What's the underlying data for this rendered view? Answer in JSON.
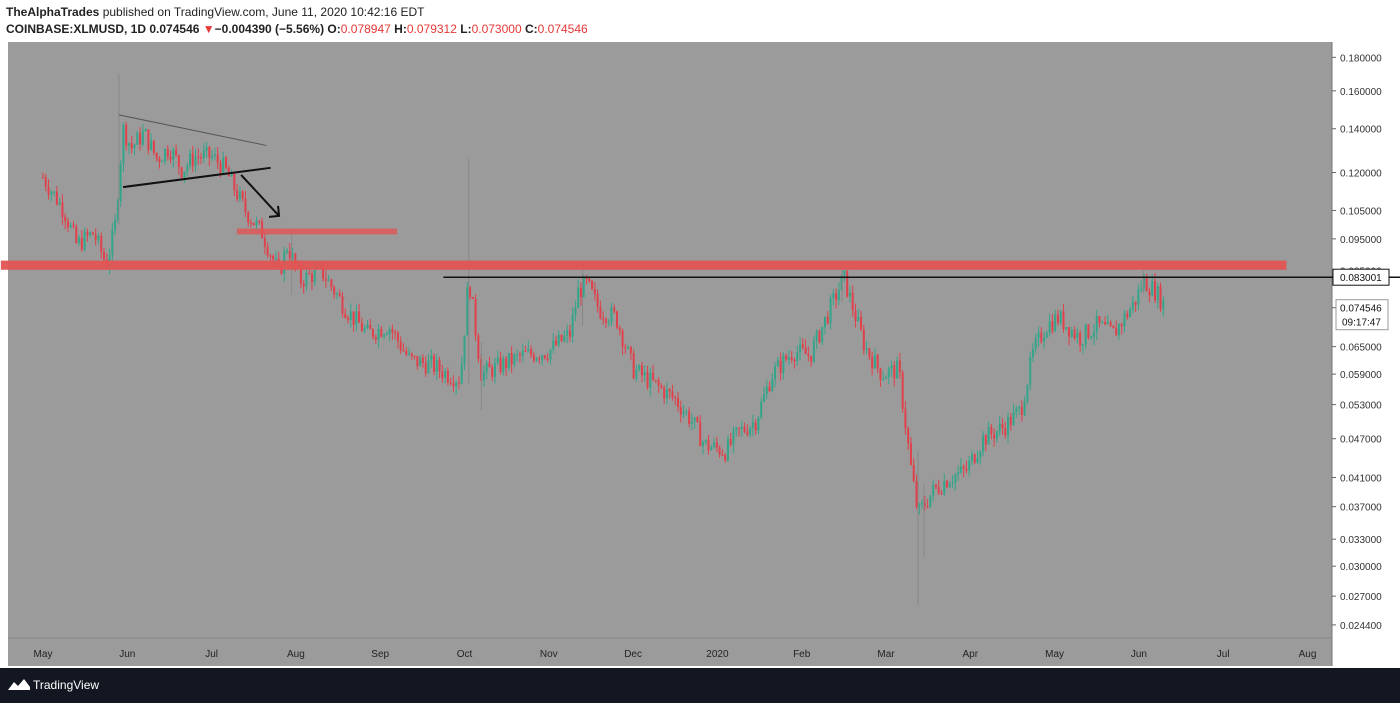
{
  "header": {
    "publisher": "TheAlphaTrades",
    "published_text": " published on TradingView.com, June 11, 2020 10:42:16 EDT",
    "symbol": "COINBASE:XLMUSD, 1D",
    "last": "0.074546",
    "change": "−0.004390 (−5.56%)",
    "o_label": "O:",
    "o_value": "0.078947",
    "h_label": "H:",
    "h_value": "0.079312",
    "l_label": "L:",
    "l_value": "0.073000",
    "c_label": "C:",
    "c_value": "0.074546"
  },
  "footer": {
    "brand": "TradingView",
    "logo_icon": "tradingview-logo-icon"
  },
  "colors": {
    "background": "#9b9b9b",
    "up": "#33a58a",
    "down": "#e0414b",
    "zone": "#e25454",
    "footer": "#131722"
  },
  "chart_data": {
    "type": "candlestick",
    "x_ticks": [
      "May",
      "Jun",
      "Jul",
      "Aug",
      "Sep",
      "Oct",
      "Nov",
      "Dec",
      "2020",
      "Feb",
      "Mar",
      "Apr",
      "May",
      "Jun",
      "Jul",
      "Aug"
    ],
    "y_ticks": [
      "0.180000",
      "0.160000",
      "0.140000",
      "0.120000",
      "0.105000",
      "0.095000",
      "0.085000",
      "0.074546",
      "0.065000",
      "0.059000",
      "0.053000",
      "0.047000",
      "0.041000",
      "0.037000",
      "0.033000",
      "0.030000",
      "0.027000",
      "0.024400"
    ],
    "ylim": [
      0.0233,
      0.19
    ],
    "scale": "log",
    "price_labels": {
      "horizontal_level": "0.083001",
      "last_price": "0.074546",
      "countdown": "09:17:47"
    },
    "price_path": [
      {
        "month": 0.0,
        "price": 0.118
      },
      {
        "month": 0.25,
        "price": 0.105
      },
      {
        "month": 0.4,
        "price": 0.093
      },
      {
        "month": 0.6,
        "price": 0.097
      },
      {
        "month": 0.75,
        "price": 0.087
      },
      {
        "month": 0.85,
        "price": 0.098
      },
      {
        "month": 0.95,
        "price": 0.14
      },
      {
        "month": 1.05,
        "price": 0.131
      },
      {
        "month": 1.2,
        "price": 0.138
      },
      {
        "month": 1.35,
        "price": 0.126
      },
      {
        "month": 1.5,
        "price": 0.131
      },
      {
        "month": 1.65,
        "price": 0.121
      },
      {
        "month": 1.8,
        "price": 0.127
      },
      {
        "month": 2.0,
        "price": 0.127
      },
      {
        "month": 2.15,
        "price": 0.122
      },
      {
        "month": 2.4,
        "price": 0.105
      },
      {
        "month": 2.6,
        "price": 0.097
      },
      {
        "month": 2.8,
        "price": 0.084
      },
      {
        "month": 2.9,
        "price": 0.093
      },
      {
        "month": 3.05,
        "price": 0.082
      },
      {
        "month": 3.3,
        "price": 0.085
      },
      {
        "month": 3.6,
        "price": 0.074
      },
      {
        "month": 3.85,
        "price": 0.068
      },
      {
        "month": 4.1,
        "price": 0.07
      },
      {
        "month": 4.35,
        "price": 0.062
      },
      {
        "month": 4.6,
        "price": 0.061
      },
      {
        "month": 4.8,
        "price": 0.059
      },
      {
        "month": 4.95,
        "price": 0.058
      },
      {
        "month": 5.05,
        "price": 0.083
      },
      {
        "month": 5.2,
        "price": 0.059
      },
      {
        "month": 5.45,
        "price": 0.061
      },
      {
        "month": 5.7,
        "price": 0.063
      },
      {
        "month": 6.0,
        "price": 0.064
      },
      {
        "month": 6.25,
        "price": 0.068
      },
      {
        "month": 6.35,
        "price": 0.079
      },
      {
        "month": 6.45,
        "price": 0.081
      },
      {
        "month": 6.6,
        "price": 0.074
      },
      {
        "month": 6.8,
        "price": 0.072
      },
      {
        "month": 7.0,
        "price": 0.06
      },
      {
        "month": 7.25,
        "price": 0.057
      },
      {
        "month": 7.5,
        "price": 0.054
      },
      {
        "month": 7.7,
        "price": 0.05
      },
      {
        "month": 7.85,
        "price": 0.046
      },
      {
        "month": 8.1,
        "price": 0.045
      },
      {
        "month": 8.25,
        "price": 0.048
      },
      {
        "month": 8.45,
        "price": 0.05
      },
      {
        "month": 8.65,
        "price": 0.059
      },
      {
        "month": 8.9,
        "price": 0.064
      },
      {
        "month": 9.1,
        "price": 0.063
      },
      {
        "month": 9.35,
        "price": 0.075
      },
      {
        "month": 9.5,
        "price": 0.083
      },
      {
        "month": 9.6,
        "price": 0.075
      },
      {
        "month": 9.75,
        "price": 0.065
      },
      {
        "month": 9.95,
        "price": 0.059
      },
      {
        "month": 10.15,
        "price": 0.06
      },
      {
        "month": 10.3,
        "price": 0.042
      },
      {
        "month": 10.38,
        "price": 0.036
      },
      {
        "month": 10.55,
        "price": 0.039
      },
      {
        "month": 10.75,
        "price": 0.041
      },
      {
        "month": 10.95,
        "price": 0.042
      },
      {
        "month": 11.15,
        "price": 0.047
      },
      {
        "month": 11.4,
        "price": 0.049
      },
      {
        "month": 11.6,
        "price": 0.052
      },
      {
        "month": 11.75,
        "price": 0.064
      },
      {
        "month": 11.9,
        "price": 0.07
      },
      {
        "month": 12.05,
        "price": 0.072
      },
      {
        "month": 12.3,
        "price": 0.067
      },
      {
        "month": 12.5,
        "price": 0.07
      },
      {
        "month": 12.7,
        "price": 0.068
      },
      {
        "month": 12.95,
        "price": 0.076
      },
      {
        "month": 13.05,
        "price": 0.082
      },
      {
        "month": 13.2,
        "price": 0.079
      },
      {
        "month": 13.32,
        "price": 0.0745
      }
    ],
    "spikes": [
      {
        "month": 0.9,
        "high": 0.17,
        "low": 0.1
      },
      {
        "month": 2.95,
        "high": 0.098,
        "low": 0.078
      },
      {
        "month": 5.05,
        "high": 0.126,
        "low": 0.057
      },
      {
        "month": 5.2,
        "high": 0.066,
        "low": 0.052
      },
      {
        "month": 6.4,
        "high": 0.087,
        "low": 0.07
      },
      {
        "month": 9.48,
        "high": 0.087,
        "low": 0.076
      },
      {
        "month": 10.38,
        "high": 0.045,
        "low": 0.0262
      },
      {
        "month": 10.45,
        "high": 0.04,
        "low": 0.031
      },
      {
        "month": 13.05,
        "high": 0.085,
        "low": 0.078
      }
    ],
    "drawings": {
      "triangle_upper": [
        {
          "month": 0.9,
          "price": 0.147
        },
        {
          "month": 2.65,
          "price": 0.132
        }
      ],
      "triangle_lower": [
        {
          "month": 0.95,
          "price": 0.114
        },
        {
          "month": 2.7,
          "price": 0.122
        }
      ],
      "arrow": [
        {
          "month": 2.35,
          "price": 0.119
        },
        {
          "month": 2.8,
          "price": 0.103
        }
      ],
      "small_zone": {
        "from_month": 2.3,
        "to_month": 4.2,
        "top": 0.0985,
        "bottom": 0.0965
      },
      "main_zone": {
        "from_month": -0.5,
        "to_month": 14.75,
        "top": 0.088,
        "bottom": 0.0852
      },
      "horizontal_level": {
        "from_month": 4.75,
        "price": 0.083001
      }
    }
  }
}
